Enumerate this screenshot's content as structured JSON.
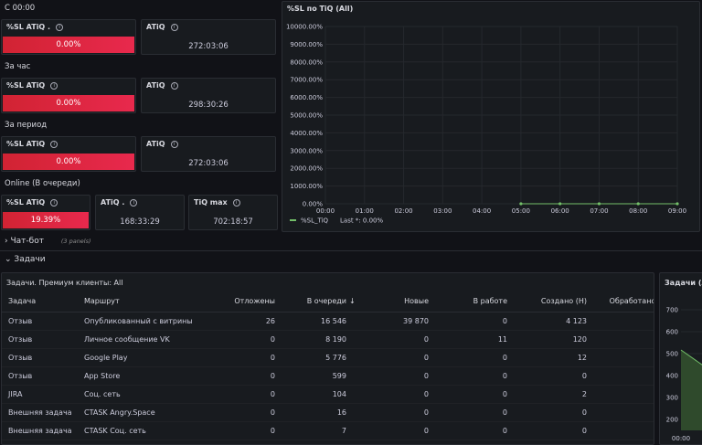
{
  "sections": {
    "today": "С 00:00",
    "hour": "За час",
    "period": "За период",
    "online": "Online (В очереди)",
    "chatbot": "Чат-бот",
    "chatbot_note": "(3 panels)",
    "tasks": "Задачи"
  },
  "stats": {
    "today": {
      "sl_title": "%SL ATiQ .",
      "sl_value": "0.00%",
      "atiq_title": "ATiQ",
      "atiq_value": "272:03:06"
    },
    "hour": {
      "sl_title": "%SL ATiQ",
      "sl_value": "0.00%",
      "atiq_title": "ATiQ",
      "atiq_value": "298:30:26"
    },
    "period": {
      "sl_title": "%SL ATiQ",
      "sl_value": "0.00%",
      "atiq_title": "ATiQ",
      "atiq_value": "272:03:06"
    },
    "online": {
      "sl_title": "%SL ATiQ",
      "sl_value": "19.39%",
      "atiq_title": "ATiQ .",
      "atiq_value": "168:33:29",
      "max_title": "TiQ max",
      "max_value": "702:18:57"
    }
  },
  "chart_data": {
    "type": "line",
    "title": "%SL по TiQ (All)",
    "x": [
      "00:00",
      "01:00",
      "02:00",
      "03:00",
      "04:00",
      "05:00",
      "06:00",
      "07:00",
      "08:00",
      "09:00"
    ],
    "series": [
      {
        "name": "%SL_TiQ",
        "x": [
          "05:00",
          "06:00",
          "07:00",
          "08:00",
          "09:00"
        ],
        "values": [
          0,
          0,
          0,
          0,
          0
        ]
      }
    ],
    "yticks": [
      "0.00%",
      "1000.00%",
      "2000.00%",
      "3000.00%",
      "4000.00%",
      "5000.00%",
      "6000.00%",
      "7000.00%",
      "8000.00%",
      "9000.00%",
      "10000.00%"
    ],
    "ylim": [
      0,
      10000
    ],
    "legend": "%SL_TiQ",
    "legend_last": "Last *: 0.00%",
    "line_color": "#73bf69"
  },
  "table": {
    "title": "Задачи. Премиум клиенты: All",
    "columns": [
      "Задача",
      "Маршрут",
      "Отложены",
      "В очереди",
      "Новые",
      "В работе",
      "Создано (Н)",
      "Обработано ("
    ],
    "rows": [
      [
        "Отзыв",
        "Опубликованный с витрины",
        "26",
        "16 546",
        "39 870",
        "0",
        "4 123",
        ""
      ],
      [
        "Отзыв",
        "Личное сообщение VK",
        "0",
        "8 190",
        "0",
        "11",
        "120",
        ""
      ],
      [
        "Отзыв",
        "Google Play",
        "0",
        "5 776",
        "0",
        "0",
        "12",
        ""
      ],
      [
        "Отзыв",
        "App Store",
        "0",
        "599",
        "0",
        "0",
        "0",
        ""
      ],
      [
        "JIRA",
        "Соц. сеть",
        "0",
        "104",
        "0",
        "0",
        "2",
        ""
      ],
      [
        "Внешняя задача",
        "CTASK Angry.Space",
        "0",
        "16",
        "0",
        "0",
        "0",
        ""
      ],
      [
        "Внешняя задача",
        "CTASK Соц. сеть",
        "0",
        "7",
        "0",
        "0",
        "0",
        ""
      ]
    ]
  },
  "side_chart": {
    "title": "Задачи (All)",
    "yticks": [
      "700",
      "600",
      "500",
      "400",
      "300",
      "200"
    ],
    "xtick": "00:00"
  },
  "colors": {
    "red": "#e8294d",
    "green": "#73bf69"
  }
}
